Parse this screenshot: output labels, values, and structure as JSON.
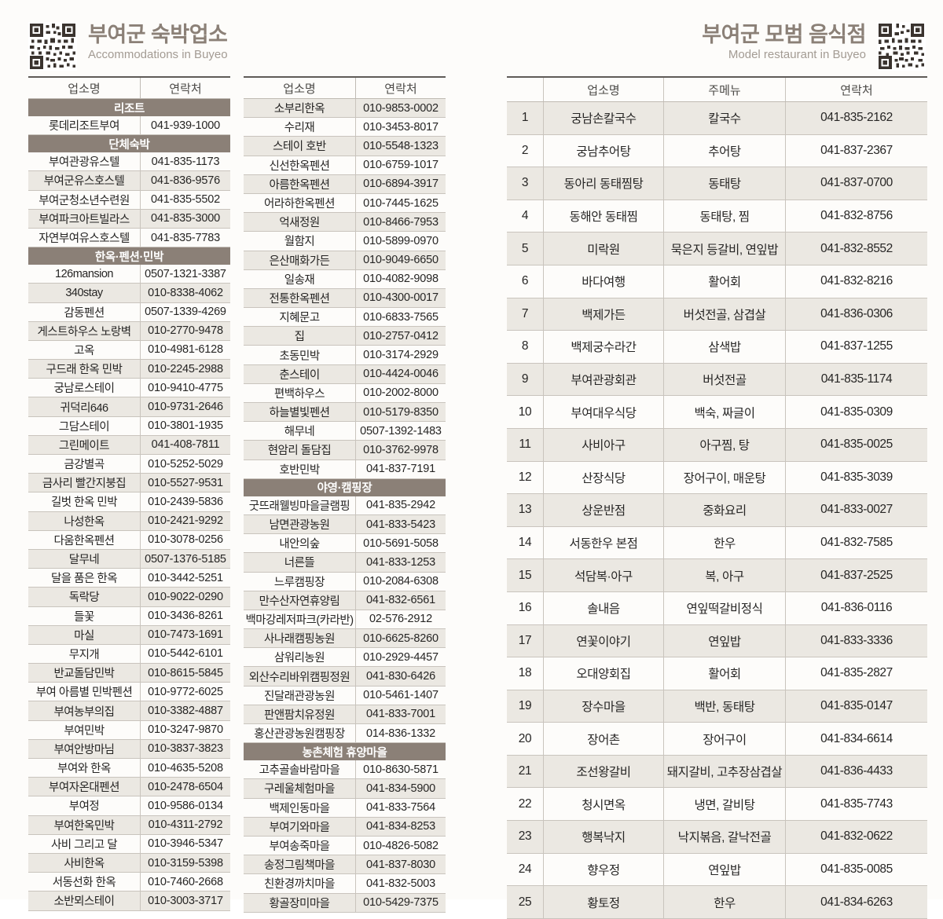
{
  "accommodations": {
    "title": "부여군 숙박업소",
    "subtitle": "Accommodations in Buyeo",
    "col_headers": [
      "업소명",
      "연락처"
    ],
    "column1": [
      {
        "type": "section",
        "label": "리조트"
      },
      {
        "type": "row",
        "name": "롯데리조트부여",
        "phone": "041-939-1000"
      },
      {
        "type": "section",
        "label": "단체숙박"
      },
      {
        "type": "row",
        "name": "부여관광유스텔",
        "phone": "041-835-1173"
      },
      {
        "type": "row",
        "name": "부여군유스호스텔",
        "phone": "041-836-9576"
      },
      {
        "type": "row",
        "name": "부여군청소년수련원",
        "phone": "041-835-5502"
      },
      {
        "type": "row",
        "name": "부여파크아트빌라스",
        "phone": "041-835-3000"
      },
      {
        "type": "row",
        "name": "자연부여유스호스텔",
        "phone": "041-835-7783"
      },
      {
        "type": "section",
        "label": "한옥·펜션·민박"
      },
      {
        "type": "row",
        "name": "126mansion",
        "phone": "0507-1321-3387"
      },
      {
        "type": "row",
        "name": "340stay",
        "phone": "010-8338-4062"
      },
      {
        "type": "row",
        "name": "감동펜션",
        "phone": "0507-1339-4269"
      },
      {
        "type": "row",
        "name": "게스트하우스 노랑벽",
        "phone": "010-2770-9478"
      },
      {
        "type": "row",
        "name": "고옥",
        "phone": "010-4981-6128"
      },
      {
        "type": "row",
        "name": "구드래 한옥 민박",
        "phone": "010-2245-2988"
      },
      {
        "type": "row",
        "name": "궁남로스테이",
        "phone": "010-9410-4775"
      },
      {
        "type": "row",
        "name": "귀덕리646",
        "phone": "010-9731-2646"
      },
      {
        "type": "row",
        "name": "그담스테이",
        "phone": "010-3801-1935"
      },
      {
        "type": "row",
        "name": "그린메이트",
        "phone": "041-408-7811"
      },
      {
        "type": "row",
        "name": "금강별곡",
        "phone": "010-5252-5029"
      },
      {
        "type": "row",
        "name": "금사리 빨간지붕집",
        "phone": "010-5527-9531"
      },
      {
        "type": "row",
        "name": "길벗 한옥 민박",
        "phone": "010-2439-5836"
      },
      {
        "type": "row",
        "name": "나성한옥",
        "phone": "010-2421-9292"
      },
      {
        "type": "row",
        "name": "다움한옥펜션",
        "phone": "010-3078-0256"
      },
      {
        "type": "row",
        "name": "달무네",
        "phone": "0507-1376-5185"
      },
      {
        "type": "row",
        "name": "달을 품은 한옥",
        "phone": "010-3442-5251"
      },
      {
        "type": "row",
        "name": "독락당",
        "phone": "010-9022-0290"
      },
      {
        "type": "row",
        "name": "들꽃",
        "phone": "010-3436-8261"
      },
      {
        "type": "row",
        "name": "마실",
        "phone": "010-7473-1691"
      },
      {
        "type": "row",
        "name": "무지개",
        "phone": "010-5442-6101"
      },
      {
        "type": "row",
        "name": "반교돌담민박",
        "phone": "010-8615-5845"
      },
      {
        "type": "row",
        "name": "부여 아름별 민박펜션",
        "phone": "010-9772-6025"
      },
      {
        "type": "row",
        "name": "부여농부의집",
        "phone": "010-3382-4887"
      },
      {
        "type": "row",
        "name": "부여민박",
        "phone": "010-3247-9870"
      },
      {
        "type": "row",
        "name": "부여안방마님",
        "phone": "010-3837-3823"
      },
      {
        "type": "row",
        "name": "부여와 한옥",
        "phone": "010-4635-5208"
      },
      {
        "type": "row",
        "name": "부여자온대펜션",
        "phone": "010-2478-6504"
      },
      {
        "type": "row",
        "name": "부여정",
        "phone": "010-9586-0134"
      },
      {
        "type": "row",
        "name": "부여한옥민박",
        "phone": "010-4311-2792"
      },
      {
        "type": "row",
        "name": "사비 그리고 달",
        "phone": "010-3946-5347"
      },
      {
        "type": "row",
        "name": "사비한옥",
        "phone": "010-3159-5398"
      },
      {
        "type": "row",
        "name": "서동선화 한옥",
        "phone": "010-7460-2668"
      },
      {
        "type": "row",
        "name": "소반뫼스테이",
        "phone": "010-3003-3717"
      }
    ],
    "column2": [
      {
        "type": "row",
        "name": "소부리한옥",
        "phone": "010-9853-0002"
      },
      {
        "type": "row",
        "name": "수리재",
        "phone": "010-3453-8017"
      },
      {
        "type": "row",
        "name": "스테이 호반",
        "phone": "010-5548-1323"
      },
      {
        "type": "row",
        "name": "신선한옥펜션",
        "phone": "010-6759-1017"
      },
      {
        "type": "row",
        "name": "아름한옥펜션",
        "phone": "010-6894-3917"
      },
      {
        "type": "row",
        "name": "어라하한옥펜션",
        "phone": "010-7445-1625"
      },
      {
        "type": "row",
        "name": "억새정원",
        "phone": "010-8466-7953"
      },
      {
        "type": "row",
        "name": "월함지",
        "phone": "010-5899-0970"
      },
      {
        "type": "row",
        "name": "은산매화가든",
        "phone": "010-9049-6650"
      },
      {
        "type": "row",
        "name": "일송재",
        "phone": "010-4082-9098"
      },
      {
        "type": "row",
        "name": "전통한옥펜션",
        "phone": "010-4300-0017"
      },
      {
        "type": "row",
        "name": "지혜문고",
        "phone": "010-6833-7565"
      },
      {
        "type": "row",
        "name": "집",
        "phone": "010-2757-0412"
      },
      {
        "type": "row",
        "name": "초동민박",
        "phone": "010-3174-2929"
      },
      {
        "type": "row",
        "name": "춘스테이",
        "phone": "010-4424-0046"
      },
      {
        "type": "row",
        "name": "편백하우스",
        "phone": "010-2002-8000"
      },
      {
        "type": "row",
        "name": "하늘별빛펜션",
        "phone": "010-5179-8350"
      },
      {
        "type": "row",
        "name": "해무네",
        "phone": "0507-1392-1483"
      },
      {
        "type": "row",
        "name": "현암리 돌담집",
        "phone": "010-3762-9978"
      },
      {
        "type": "row",
        "name": "호반민박",
        "phone": "041-837-7191"
      },
      {
        "type": "section",
        "label": "야영·캠핑장"
      },
      {
        "type": "row",
        "name": "굿뜨래웰빙마을글램핑",
        "phone": "041-835-2942"
      },
      {
        "type": "row",
        "name": "남면관광농원",
        "phone": "041-833-5423"
      },
      {
        "type": "row",
        "name": "내안의숲",
        "phone": "010-5691-5058"
      },
      {
        "type": "row",
        "name": "너른뜰",
        "phone": "041-833-1253"
      },
      {
        "type": "row",
        "name": "느루캠핑장",
        "phone": "010-2084-6308"
      },
      {
        "type": "row",
        "name": "만수산자연휴양림",
        "phone": "041-832-6561"
      },
      {
        "type": "row",
        "name": "백마강레저파크(카라반)",
        "phone": "02-576-2912"
      },
      {
        "type": "row",
        "name": "사나래캠핑농원",
        "phone": "010-6625-8260"
      },
      {
        "type": "row",
        "name": "삼워리농원",
        "phone": "010-2929-4457"
      },
      {
        "type": "row",
        "name": "외산수리바위캠핑정원",
        "phone": "041-830-6426"
      },
      {
        "type": "row",
        "name": "진달래관광농원",
        "phone": "010-5461-1407"
      },
      {
        "type": "row",
        "name": "판앤팜치유정원",
        "phone": "041-833-7001"
      },
      {
        "type": "row",
        "name": "홍산관광농원캠핑장",
        "phone": "014-836-1332"
      },
      {
        "type": "section",
        "label": "농촌체험 휴양마을"
      },
      {
        "type": "row",
        "name": "고추골솔바람마을",
        "phone": "010-8630-5871"
      },
      {
        "type": "row",
        "name": "구레울체험마을",
        "phone": "041-834-5900"
      },
      {
        "type": "row",
        "name": "백제인동마을",
        "phone": "041-833-7564"
      },
      {
        "type": "row",
        "name": "부여기와마을",
        "phone": "041-834-8253"
      },
      {
        "type": "row",
        "name": "부여송죽마을",
        "phone": "010-4826-5082"
      },
      {
        "type": "row",
        "name": "송정그림책마을",
        "phone": "041-837-8030"
      },
      {
        "type": "row",
        "name": "친환경까치마을",
        "phone": "041-832-5003"
      },
      {
        "type": "row",
        "name": "황골장미마을",
        "phone": "010-5429-7375"
      }
    ]
  },
  "restaurants": {
    "title": "부여군 모범 음식점",
    "subtitle": "Model restaurant in Buyeo",
    "col_headers": [
      "",
      "업소명",
      "주메뉴",
      "연락처"
    ],
    "rows": [
      {
        "no": "1",
        "name": "궁남손칼국수",
        "menu": "칼국수",
        "phone": "041-835-2162"
      },
      {
        "no": "2",
        "name": "궁남추어탕",
        "menu": "추어탕",
        "phone": "041-837-2367"
      },
      {
        "no": "3",
        "name": "동아리 동태찜탕",
        "menu": "동태탕",
        "phone": "041-837-0700"
      },
      {
        "no": "4",
        "name": "동해안 동태찜",
        "menu": "동태탕, 찜",
        "phone": "041-832-8756"
      },
      {
        "no": "5",
        "name": "미락원",
        "menu": "묵은지 등갈비, 연잎밥",
        "phone": "041-832-8552"
      },
      {
        "no": "6",
        "name": "바다여행",
        "menu": "활어회",
        "phone": "041-832-8216"
      },
      {
        "no": "7",
        "name": "백제가든",
        "menu": "버섯전골, 삼겹살",
        "phone": "041-836-0306"
      },
      {
        "no": "8",
        "name": "백제궁수라간",
        "menu": "삼색밥",
        "phone": "041-837-1255"
      },
      {
        "no": "9",
        "name": "부여관광회관",
        "menu": "버섯전골",
        "phone": "041-835-1174"
      },
      {
        "no": "10",
        "name": "부여대우식당",
        "menu": "백숙, 짜글이",
        "phone": "041-835-0309"
      },
      {
        "no": "11",
        "name": "사비아구",
        "menu": "아구찜, 탕",
        "phone": "041-835-0025"
      },
      {
        "no": "12",
        "name": "산장식당",
        "menu": "장어구이, 매운탕",
        "phone": "041-835-3039"
      },
      {
        "no": "13",
        "name": "상운반점",
        "menu": "중화요리",
        "phone": "041-833-0027"
      },
      {
        "no": "14",
        "name": "서동한우 본점",
        "menu": "한우",
        "phone": "041-832-7585"
      },
      {
        "no": "15",
        "name": "석담복·아구",
        "menu": "복, 아구",
        "phone": "041-837-2525"
      },
      {
        "no": "16",
        "name": "솔내음",
        "menu": "연잎떡갈비정식",
        "phone": "041-836-0116"
      },
      {
        "no": "17",
        "name": "연꽃이야기",
        "menu": "연잎밥",
        "phone": "041-833-3336"
      },
      {
        "no": "18",
        "name": "오대양회집",
        "menu": "활어회",
        "phone": "041-835-2827"
      },
      {
        "no": "19",
        "name": "장수마을",
        "menu": "백반, 동태탕",
        "phone": "041-835-0147"
      },
      {
        "no": "20",
        "name": "장어촌",
        "menu": "장어구이",
        "phone": "041-834-6614"
      },
      {
        "no": "21",
        "name": "조선왕갈비",
        "menu": "돼지갈비, 고추장삼겹살",
        "phone": "041-836-4433"
      },
      {
        "no": "22",
        "name": "청시면옥",
        "menu": "냉면, 갈비탕",
        "phone": "041-835-7743"
      },
      {
        "no": "23",
        "name": "행복낙지",
        "menu": "낙지볶음, 갈낙전골",
        "phone": "041-832-0622"
      },
      {
        "no": "24",
        "name": "향우정",
        "menu": "연잎밥",
        "phone": "041-835-0085"
      },
      {
        "no": "25",
        "name": "황토정",
        "menu": "한우",
        "phone": "041-834-6263"
      }
    ]
  },
  "colors": {
    "section_header_bg": "#8b8077",
    "stripe_row_bg": "#ebe8e2",
    "title_text": "#8b8077",
    "subtitle_text": "#a39b93",
    "border_dark": "#5f5b57",
    "border_light": "#c9c4bd"
  }
}
